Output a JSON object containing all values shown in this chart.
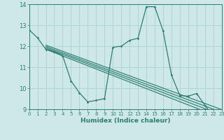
{
  "xlabel": "Humidex (Indice chaleur)",
  "xlim": [
    0,
    23
  ],
  "ylim": [
    9,
    14
  ],
  "yticks": [
    9,
    10,
    11,
    12,
    13,
    14
  ],
  "xticks": [
    0,
    1,
    2,
    3,
    4,
    5,
    6,
    7,
    8,
    9,
    10,
    11,
    12,
    13,
    14,
    15,
    16,
    17,
    18,
    19,
    20,
    21,
    22,
    23
  ],
  "bg_color": "#cde8e6",
  "grid_color": "#b0d4d0",
  "line_color": "#2e7d72",
  "main_x": [
    0,
    1,
    2,
    3,
    4,
    5,
    6,
    7,
    8,
    9,
    10,
    11,
    12,
    13,
    14,
    15,
    16,
    17,
    18,
    19,
    20,
    21,
    22,
    23
  ],
  "main_y": [
    12.78,
    12.4,
    11.85,
    11.75,
    11.55,
    10.35,
    9.78,
    9.35,
    9.42,
    9.5,
    11.95,
    12.0,
    12.28,
    12.38,
    13.88,
    13.88,
    12.72,
    10.62,
    9.65,
    9.62,
    9.75,
    9.18,
    8.65,
    8.58
  ],
  "trend_lines": [
    {
      "x": [
        2,
        23
      ],
      "y": [
        11.85,
        8.58
      ]
    },
    {
      "x": [
        2,
        23
      ],
      "y": [
        11.92,
        8.72
      ]
    },
    {
      "x": [
        2,
        23
      ],
      "y": [
        11.98,
        8.85
      ]
    },
    {
      "x": [
        2,
        23
      ],
      "y": [
        12.05,
        8.98
      ]
    }
  ]
}
